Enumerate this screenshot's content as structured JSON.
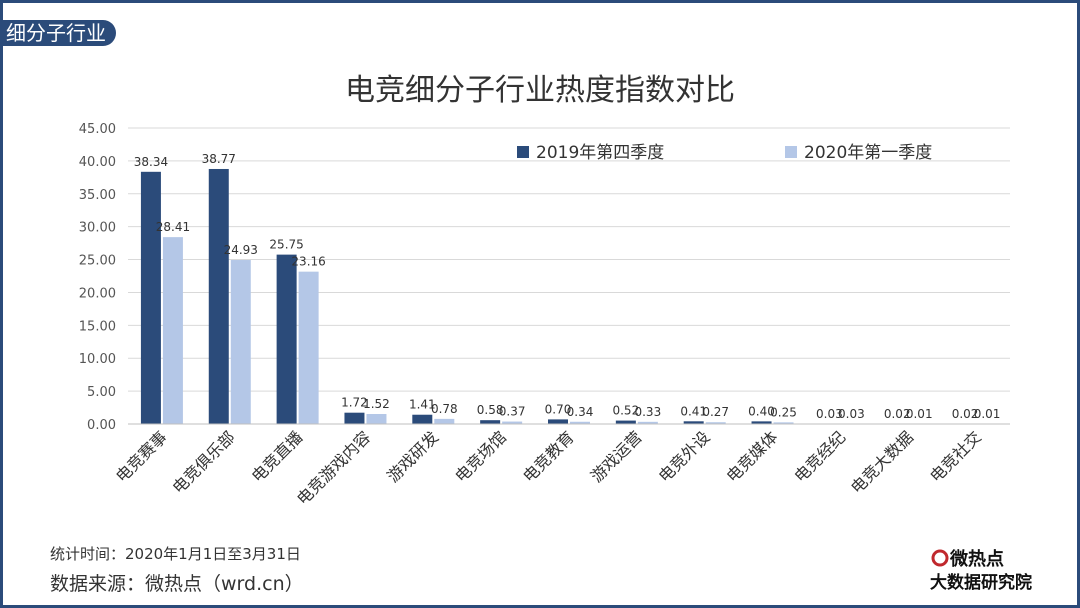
{
  "section_tag": "细分子行业",
  "chart_data": {
    "type": "bar",
    "title": "电竞细分子行业热度指数对比",
    "categories": [
      "电竞赛事",
      "电竞俱乐部",
      "电竞直播",
      "电竞游戏内容",
      "游戏研发",
      "电竞场馆",
      "电竞教育",
      "游戏运营",
      "电竞外设",
      "电竞媒体",
      "电竞经纪",
      "电竞大数据",
      "电竞社交"
    ],
    "series": [
      {
        "name": "2019年第四季度",
        "color": "#2b4b7a",
        "values": [
          38.34,
          38.77,
          25.75,
          1.72,
          1.41,
          0.58,
          0.7,
          0.52,
          0.41,
          0.4,
          0.03,
          0.02,
          0.02
        ]
      },
      {
        "name": "2020年第一季度",
        "color": "#b4c7e7",
        "values": [
          28.41,
          24.93,
          23.16,
          1.52,
          0.78,
          0.37,
          0.34,
          0.33,
          0.27,
          0.25,
          0.03,
          0.01,
          0.01
        ]
      }
    ],
    "value_labels": [
      [
        "38.34",
        "38.77",
        "25.75",
        "1.72",
        "1.41",
        "0.58",
        "0.70",
        "0.52",
        "0.41",
        "0.40",
        "0.03",
        "0.02",
        "0.02"
      ],
      [
        "28.41",
        "24.93",
        "23.16",
        "1.52",
        "0.78",
        "0.37",
        "0.34",
        "0.33",
        "0.27",
        "0.25",
        "0.03",
        "0.01",
        "0.01"
      ]
    ],
    "ylim": [
      0,
      45
    ],
    "yticks": [
      "0.00",
      "5.00",
      "10.00",
      "15.00",
      "20.00",
      "25.00",
      "30.00",
      "35.00",
      "40.00",
      "45.00"
    ],
    "grid": true,
    "legend_position": "top-right"
  },
  "footer": {
    "stat_time": "统计时间：2020年1月1日至3月31日",
    "source": "数据来源：微热点（wrd.cn）"
  },
  "logo": {
    "line1": "微热点",
    "line2": "大数据研究院",
    "color": "#111111",
    "accent": "#c0282d"
  }
}
